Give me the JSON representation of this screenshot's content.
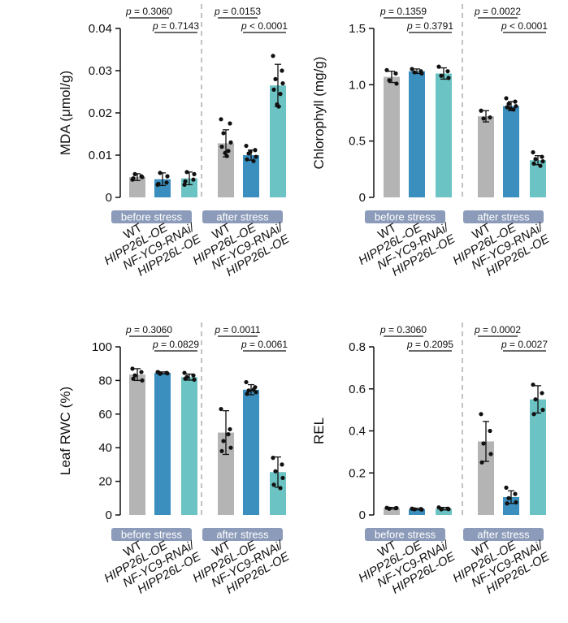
{
  "colors": {
    "wt": "#b4b4b4",
    "oe": "#3a8fbf",
    "rnai": "#6cc3c3",
    "group_bar": "#8b9bb9",
    "group_text": "#ffffff",
    "axis": "#111111",
    "dashed": "#9a9a9a"
  },
  "group_labels": {
    "before": "before stress",
    "after": "after stress"
  },
  "tick_label_lines": [
    [
      "WT"
    ],
    [
      "HIPP26L-OE"
    ],
    [
      "NF-YC9-RNAi/",
      "HIPP26L-OE"
    ]
  ],
  "chart_data": [
    {
      "type": "bar",
      "ylabel": "MDA (μmol/g)",
      "ylim": [
        0,
        0.04
      ],
      "yticks": [
        "0",
        "0.01",
        "0.02",
        "0.03",
        "0.04"
      ],
      "ytick_values": [
        0,
        0.01,
        0.02,
        0.03,
        0.04
      ],
      "categories": [
        "WT",
        "HIPP26L-OE",
        "NF-YC9-RNAi/HIPP26L-OE"
      ],
      "groups": [
        {
          "name": "before stress",
          "means": [
            0.0048,
            0.0043,
            0.0045
          ],
          "sd": [
            0.0008,
            0.0015,
            0.0015
          ],
          "points": [
            [
              0.0042,
              0.005,
              0.0055,
              0.0048,
              0.0045
            ],
            [
              0.003,
              0.0035,
              0.0058,
              0.005,
              0.0032
            ],
            [
              0.003,
              0.0042,
              0.006,
              0.0055,
              0.0038
            ]
          ],
          "p_values": [
            "p = 0.3060",
            "p = 0.7143"
          ]
        },
        {
          "name": "after stress",
          "means": [
            0.0128,
            0.01,
            0.0265
          ],
          "sd": [
            0.0032,
            0.0012,
            0.005
          ],
          "points": [
            [
              0.0185,
              0.0175,
              0.0152,
              0.013,
              0.012,
              0.011,
              0.0105,
              0.0098
            ],
            [
              0.0122,
              0.0112,
              0.0104,
              0.0096,
              0.009,
              0.0086,
              0.0108
            ],
            [
              0.0335,
              0.03,
              0.028,
              0.027,
              0.0255,
              0.0245,
              0.022,
              0.0215
            ]
          ],
          "p_values": [
            "p = 0.0153",
            "p < 0.0001"
          ]
        }
      ]
    },
    {
      "type": "bar",
      "ylabel": "Chlorophyll (mg/g)",
      "ylim": [
        0,
        1.5
      ],
      "yticks": [
        "0",
        "0.5",
        "1.0",
        "1.5"
      ],
      "ytick_values": [
        0,
        0.5,
        1.0,
        1.5
      ],
      "categories": [
        "WT",
        "HIPP26L-OE",
        "NF-YC9-RNAi/HIPP26L-OE"
      ],
      "groups": [
        {
          "name": "before stress",
          "means": [
            1.07,
            1.12,
            1.1
          ],
          "sd": [
            0.05,
            0.02,
            0.05
          ],
          "points": [
            [
              1.13,
              1.1,
              1.04,
              1.01
            ],
            [
              1.14,
              1.12,
              1.11,
              1.1
            ],
            [
              1.16,
              1.12,
              1.08,
              1.06
            ]
          ],
          "p_values": [
            "p = 0.1359",
            "p = 0.3791"
          ]
        },
        {
          "name": "after stress",
          "means": [
            0.72,
            0.81,
            0.33
          ],
          "sd": [
            0.05,
            0.04,
            0.04
          ],
          "points": [
            [
              0.77,
              0.71,
              0.7
            ],
            [
              0.88,
              0.85,
              0.83,
              0.81,
              0.8,
              0.78,
              0.79
            ],
            [
              0.4,
              0.36,
              0.34,
              0.32,
              0.3,
              0.28
            ]
          ],
          "p_values": [
            "p = 0.0022",
            "p < 0.0001"
          ]
        }
      ]
    },
    {
      "type": "bar",
      "ylabel": "Leaf RWC (%)",
      "ylim": [
        0,
        100
      ],
      "yticks": [
        "0",
        "20",
        "40",
        "60",
        "80",
        "100"
      ],
      "ytick_values": [
        0,
        20,
        40,
        60,
        80,
        100
      ],
      "categories": [
        "WT",
        "HIPP26L-OE",
        "NF-YC9-RNAi/HIPP26L-OE"
      ],
      "groups": [
        {
          "name": "before stress",
          "means": [
            83.5,
            84.5,
            82
          ],
          "sd": [
            3.5,
            0.6,
            1.8
          ],
          "points": [
            [
              87,
              85,
              83,
              80,
              81
            ],
            [
              85,
              84.5,
              84,
              84.2,
              84.8
            ],
            [
              84.5,
              83,
              82,
              80.5,
              81
            ]
          ],
          "p_values": [
            "p = 0.3060",
            "p = 0.0829"
          ]
        },
        {
          "name": "after stress",
          "means": [
            49,
            74.5,
            25.5
          ],
          "sd": [
            13,
            3,
            9
          ],
          "points": [
            [
              63,
              51,
              44,
              40,
              38,
              48
            ],
            [
              79,
              76,
              74,
              73,
              72,
              74.5
            ],
            [
              34,
              30,
              26,
              22,
              18,
              16
            ]
          ],
          "p_values": [
            "p = 0.0011",
            "p = 0.0061"
          ]
        }
      ]
    },
    {
      "type": "bar",
      "ylabel": "REL",
      "ylim": [
        0,
        0.8
      ],
      "yticks": [
        "0",
        "0.2",
        "0.4",
        "0.6",
        "0.8"
      ],
      "ytick_values": [
        0,
        0.2,
        0.4,
        0.6,
        0.8
      ],
      "categories": [
        "WT",
        "HIPP26L-OE",
        "NF-YC9-RNAi/HIPP26L-OE"
      ],
      "groups": [
        {
          "name": "before stress",
          "means": [
            0.032,
            0.028,
            0.03
          ],
          "sd": [
            0.004,
            0.004,
            0.006
          ],
          "points": [
            [
              0.034,
              0.032,
              0.03,
              0.033
            ],
            [
              0.03,
              0.028,
              0.027,
              0.026
            ],
            [
              0.036,
              0.03,
              0.027,
              0.028
            ]
          ],
          "p_values": [
            "p = 0.3060",
            "p = 0.2095"
          ]
        },
        {
          "name": "after stress",
          "means": [
            0.35,
            0.085,
            0.55
          ],
          "sd": [
            0.095,
            0.03,
            0.065
          ],
          "points": [
            [
              0.48,
              0.4,
              0.34,
              0.29,
              0.25
            ],
            [
              0.13,
              0.1,
              0.08,
              0.06,
              0.055
            ],
            [
              0.62,
              0.58,
              0.55,
              0.5,
              0.48
            ]
          ],
          "p_values": [
            "p = 0.0002",
            "p = 0.0027"
          ]
        }
      ]
    }
  ]
}
